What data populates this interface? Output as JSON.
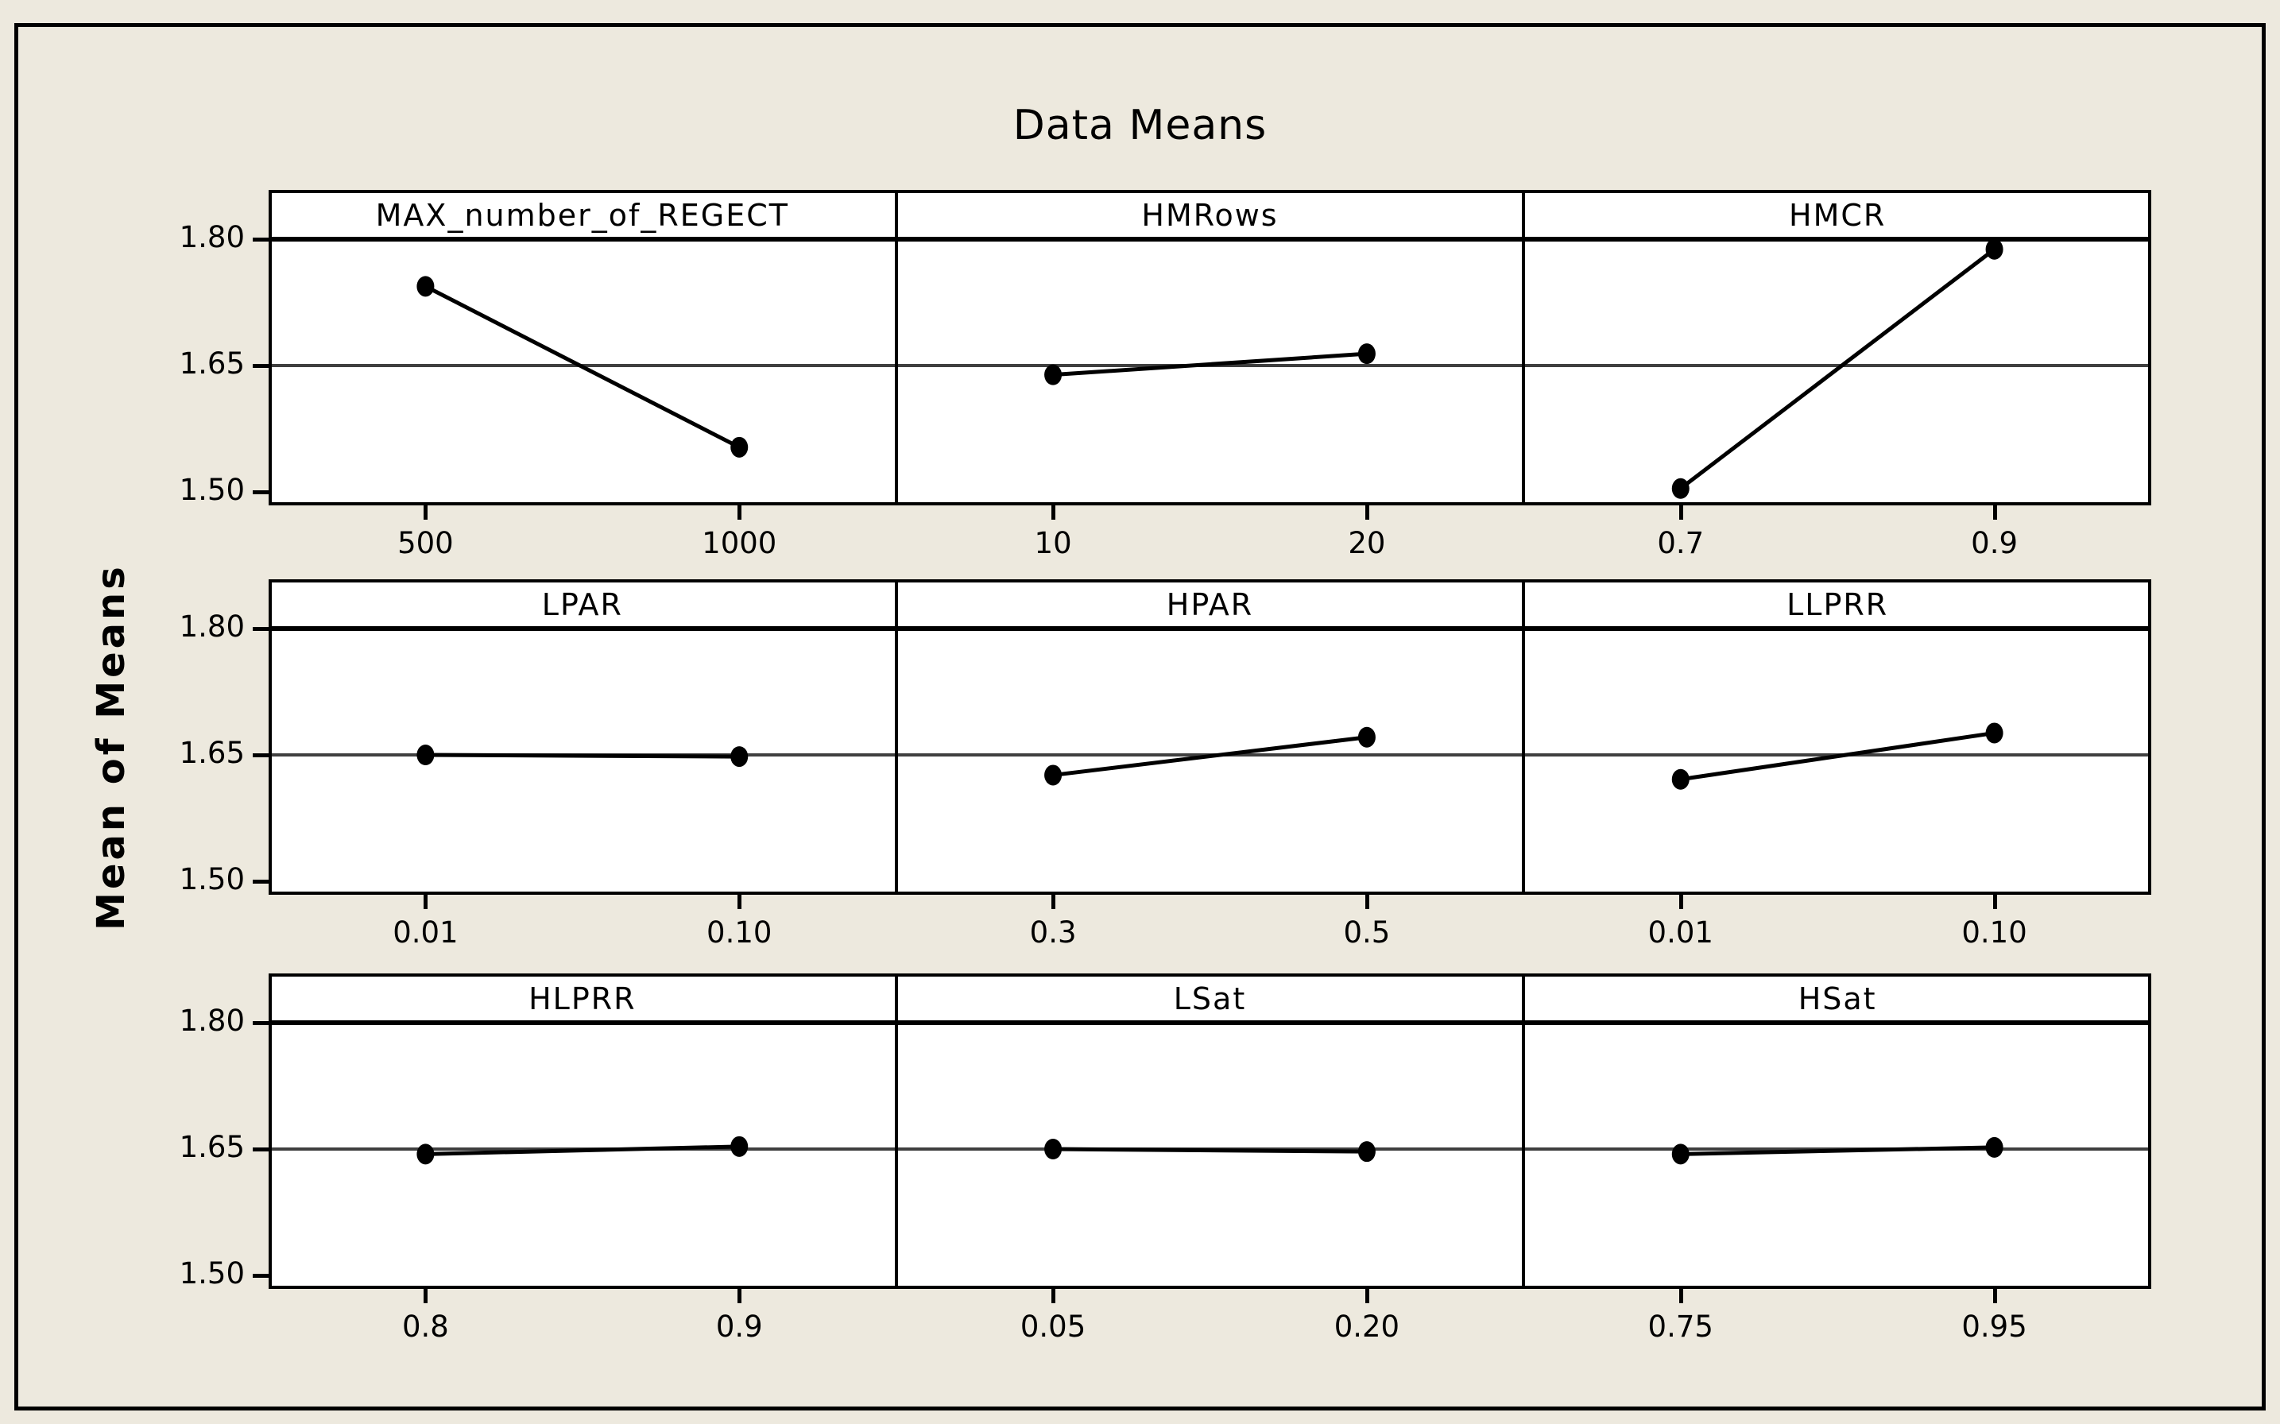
{
  "title": "Data Means",
  "ylabel": "Mean of Means",
  "colors": {
    "background": "#EDE9DE",
    "panel_fill": "#FFFFFF",
    "frame": "#000000",
    "gridline": "#3F3F3F",
    "series": "#000000"
  },
  "ytick_labels": [
    "1.80",
    "1.65",
    "1.50"
  ],
  "chart_data": {
    "type": "line",
    "title": "Data Means",
    "ylabel": "Mean of Means",
    "layout": "3x3-main-effects-panels",
    "ylim": [
      1.483,
      1.805
    ],
    "yticks": [
      1.8,
      1.65,
      1.5
    ],
    "reference_line": 1.65,
    "grid": "horizontal reference line at 1.65 and heavy line at 1.80 under each panel header",
    "legend_position": "none",
    "panels": [
      {
        "factor": "MAX_number_of_REGECT",
        "levels": [
          "500",
          "1000"
        ],
        "means": [
          1.744,
          1.553
        ]
      },
      {
        "factor": "HMRows",
        "levels": [
          "10",
          "20"
        ],
        "means": [
          1.639,
          1.664
        ]
      },
      {
        "factor": "HMCR",
        "levels": [
          "0.7",
          "0.9"
        ],
        "means": [
          1.504,
          1.788
        ]
      },
      {
        "factor": "LPAR",
        "levels": [
          "0.01",
          "0.10"
        ],
        "means": [
          1.65,
          1.648
        ]
      },
      {
        "factor": "HPAR",
        "levels": [
          "0.3",
          "0.5"
        ],
        "means": [
          1.626,
          1.671
        ]
      },
      {
        "factor": "LLPRR",
        "levels": [
          "0.01",
          "0.10"
        ],
        "means": [
          1.621,
          1.676
        ]
      },
      {
        "factor": "HLPRR",
        "levels": [
          "0.8",
          "0.9"
        ],
        "means": [
          1.644,
          1.653
        ]
      },
      {
        "factor": "LSat",
        "levels": [
          "0.05",
          "0.20"
        ],
        "means": [
          1.65,
          1.647
        ]
      },
      {
        "factor": "HSat",
        "levels": [
          "0.75",
          "0.95"
        ],
        "means": [
          1.644,
          1.652
        ]
      }
    ]
  }
}
